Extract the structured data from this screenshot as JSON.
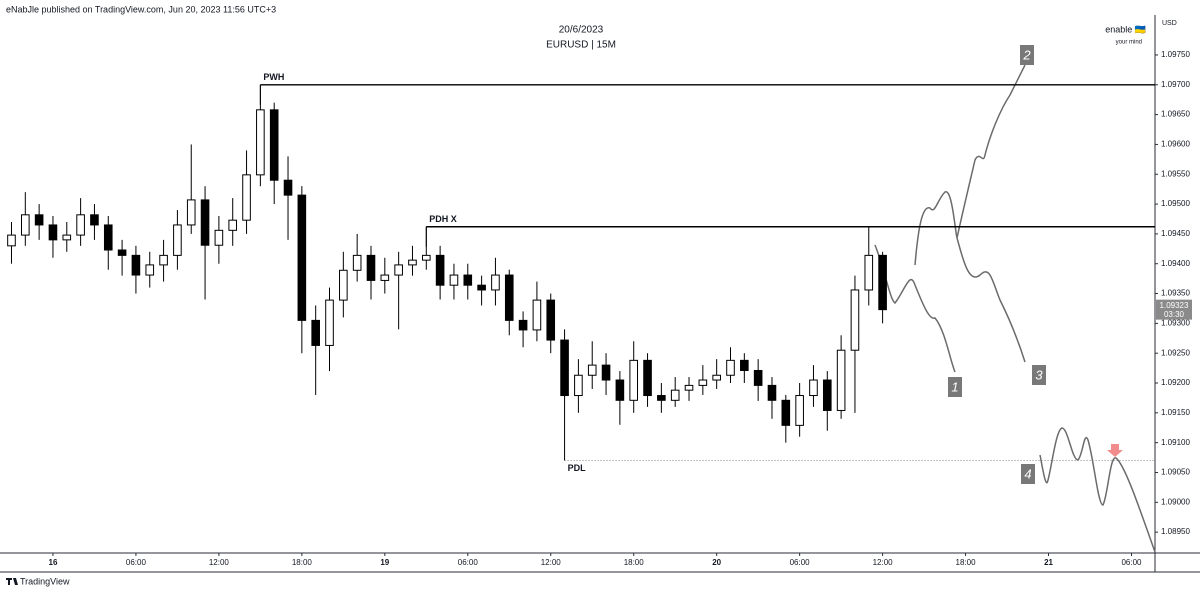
{
  "header": {
    "publisher": "eNabJle published on TradingView.com, Jun 20, 2023 11:56 UTC+3",
    "watermark": "enable 🇺🇦",
    "watermark_sub": "your mind"
  },
  "footer": {
    "brand": "TradingView"
  },
  "chart_data": {
    "type": "candlestick",
    "title": "20/6/2023",
    "subtitle": "EURUSD | 15M",
    "y_axis_label": "USD",
    "up_color": "#ffffff",
    "down_color": "#000000",
    "grid": false,
    "xlim": [
      -3.83,
      79.7
    ],
    "ylim": [
      1.08915,
      1.09817
    ],
    "xticks": [
      {
        "value": 0,
        "label": "16"
      },
      {
        "value": 6,
        "label": "06:00"
      },
      {
        "value": 12,
        "label": "12:00"
      },
      {
        "value": 18,
        "label": "18:00"
      },
      {
        "value": 24,
        "label": "19"
      },
      {
        "value": 30,
        "label": "06:00"
      },
      {
        "value": 36,
        "label": "12:00"
      },
      {
        "value": 42,
        "label": "18:00"
      },
      {
        "value": 48,
        "label": "20"
      },
      {
        "value": 54,
        "label": "06:00"
      },
      {
        "value": 60,
        "label": "12:00"
      },
      {
        "value": 66,
        "label": "18:00"
      },
      {
        "value": 72,
        "label": "21"
      },
      {
        "value": 78,
        "label": "06:00"
      }
    ],
    "yticks": [
      {
        "value": 1.0895,
        "label": "1.08950"
      },
      {
        "value": 1.09,
        "label": "1.09000"
      },
      {
        "value": 1.0905,
        "label": "1.09050"
      },
      {
        "value": 1.091,
        "label": "1.09100"
      },
      {
        "value": 1.0915,
        "label": "1.09150"
      },
      {
        "value": 1.092,
        "label": "1.09200"
      },
      {
        "value": 1.0925,
        "label": "1.09250"
      },
      {
        "value": 1.093,
        "label": "1.09300"
      },
      {
        "value": 1.0935,
        "label": "1.09350"
      },
      {
        "value": 1.094,
        "label": "1.09400"
      },
      {
        "value": 1.0945,
        "label": "1.09450"
      },
      {
        "value": 1.095,
        "label": "1.09500"
      },
      {
        "value": 1.0955,
        "label": "1.09550"
      },
      {
        "value": 1.096,
        "label": "1.09600"
      },
      {
        "value": 1.0965,
        "label": "1.09650"
      },
      {
        "value": 1.097,
        "label": "1.09700"
      },
      {
        "value": 1.0975,
        "label": "1.09750"
      }
    ],
    "x": [
      -3,
      -2,
      -1,
      0,
      1,
      2,
      3,
      4,
      5,
      6,
      7,
      8,
      9,
      10,
      11,
      12,
      13,
      14,
      15,
      16,
      17,
      18,
      19,
      20,
      21,
      22,
      23,
      24,
      25,
      26,
      27,
      28,
      29,
      30,
      31,
      32,
      33,
      34,
      35,
      36,
      37,
      38,
      39,
      40,
      41,
      42,
      43,
      44,
      45,
      46,
      47,
      48,
      49,
      50,
      51,
      52,
      53,
      54,
      55,
      56,
      57,
      58,
      59,
      60
    ],
    "open": [
      1.0943,
      1.09448,
      1.09482,
      1.09465,
      1.0944,
      1.09448,
      1.09482,
      1.09465,
      1.09423,
      1.09414,
      1.09381,
      1.09398,
      1.09414,
      1.09465,
      1.09507,
      1.09431,
      1.09456,
      1.09473,
      1.09549,
      1.09658,
      1.0954,
      1.09515,
      1.09305,
      1.09263,
      1.09339,
      1.09389,
      1.09414,
      1.09372,
      1.09381,
      1.09398,
      1.09406,
      1.09414,
      1.09364,
      1.09381,
      1.09364,
      1.09356,
      1.09381,
      1.09305,
      1.09289,
      1.09339,
      1.09272,
      1.09179,
      1.09213,
      1.0923,
      1.09205,
      1.09171,
      1.09238,
      1.09179,
      1.09171,
      1.09188,
      1.09196,
      1.09205,
      1.09213,
      1.09238,
      1.09221,
      1.09196,
      1.09171,
      1.09129,
      1.09179,
      1.09205,
      1.09154,
      1.09255,
      1.09356,
      1.09414
    ],
    "high": [
      1.0947,
      1.0952,
      1.095,
      1.0948,
      1.0947,
      1.0951,
      1.095,
      1.0948,
      1.0944,
      1.0943,
      1.0942,
      1.0944,
      1.0949,
      1.096,
      1.0953,
      1.0948,
      1.0951,
      1.0959,
      1.097,
      1.0967,
      1.0958,
      1.0953,
      1.0933,
      1.0936,
      1.0942,
      1.0945,
      1.0943,
      1.0941,
      1.0942,
      1.0943,
      1.09462,
      1.0943,
      1.094,
      1.094,
      1.0938,
      1.0941,
      1.0939,
      1.0932,
      1.0937,
      1.0935,
      1.0929,
      1.0924,
      1.0927,
      1.0925,
      1.0922,
      1.0927,
      1.0925,
      1.092,
      1.0921,
      1.0921,
      1.0923,
      1.0924,
      1.0926,
      1.0925,
      1.0924,
      1.0921,
      1.0918,
      1.092,
      1.0923,
      1.0922,
      1.0928,
      1.0938,
      1.09462,
      1.0942
    ],
    "low": [
      1.094,
      1.0943,
      1.0944,
      1.0941,
      1.0942,
      1.0943,
      1.0944,
      1.0939,
      1.0938,
      1.0935,
      1.0936,
      1.0937,
      1.0939,
      1.0945,
      1.0934,
      1.094,
      1.0943,
      1.0945,
      1.0953,
      1.095,
      1.0944,
      1.0925,
      1.0918,
      1.0922,
      1.0931,
      1.0937,
      1.0934,
      1.0935,
      1.0929,
      1.0938,
      1.0939,
      1.0934,
      1.0934,
      1.0934,
      1.0933,
      1.0933,
      1.0928,
      1.0926,
      1.0927,
      1.0925,
      1.0907,
      1.0915,
      1.0919,
      1.0918,
      1.0913,
      1.0915,
      1.0916,
      1.0915,
      1.0916,
      1.0917,
      1.0918,
      1.0919,
      1.092,
      1.092,
      1.0917,
      1.0914,
      1.091,
      1.0911,
      1.0916,
      1.0912,
      1.0914,
      1.0915,
      1.0933,
      1.093
    ],
    "close": [
      1.09448,
      1.09482,
      1.09465,
      1.0944,
      1.09448,
      1.09482,
      1.09465,
      1.09423,
      1.09414,
      1.09381,
      1.09398,
      1.09414,
      1.09465,
      1.09507,
      1.09431,
      1.09456,
      1.09473,
      1.09549,
      1.09658,
      1.0954,
      1.09515,
      1.09305,
      1.09263,
      1.09339,
      1.09389,
      1.09414,
      1.09372,
      1.09381,
      1.09398,
      1.09406,
      1.09414,
      1.09364,
      1.09381,
      1.09364,
      1.09356,
      1.09381,
      1.09305,
      1.09289,
      1.09339,
      1.09272,
      1.09179,
      1.09213,
      1.0923,
      1.09205,
      1.09171,
      1.09238,
      1.09179,
      1.09171,
      1.09188,
      1.09196,
      1.09205,
      1.09213,
      1.09238,
      1.09221,
      1.09196,
      1.09171,
      1.09129,
      1.09179,
      1.09205,
      1.09154,
      1.09255,
      1.09356,
      1.09414,
      1.09323
    ],
    "levels": [
      {
        "name": "PWH",
        "value": 1.097,
        "start": 15,
        "style": "solid"
      },
      {
        "name": "PDH X",
        "value": 1.09462,
        "start": 27,
        "style": "solid"
      },
      {
        "name": "PDL",
        "value": 1.0907,
        "start": 37,
        "style": "dotted"
      }
    ],
    "last_price": {
      "value": 1.09323,
      "countdown": "03:30"
    },
    "scenarios": [
      "1",
      "2",
      "3",
      "4"
    ]
  }
}
